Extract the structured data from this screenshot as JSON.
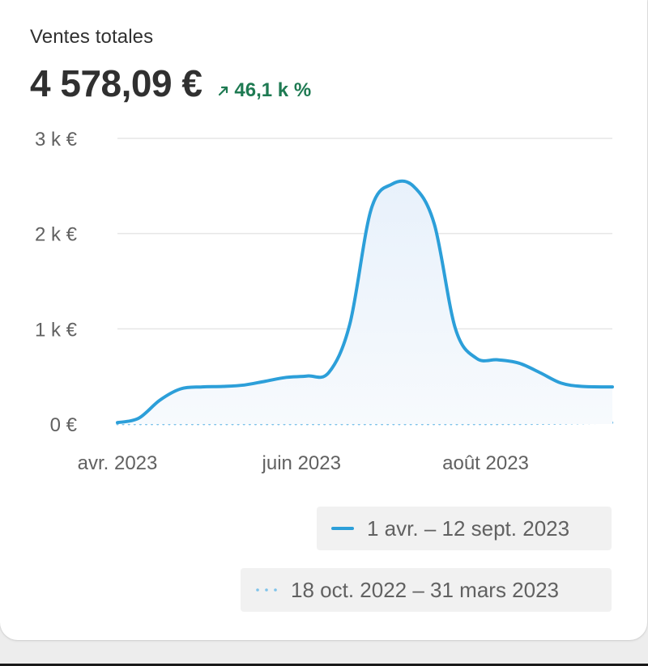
{
  "card": {
    "title": "Ventes totales",
    "value": "4 578,09 €",
    "change": "46,1 k %",
    "change_color": "#1e7a52",
    "change_icon": "arrow-up-right-icon"
  },
  "chart_data": {
    "type": "area",
    "ylim": [
      0,
      3000
    ],
    "y_ticks": [
      {
        "value": 0,
        "label": "0 €"
      },
      {
        "value": 1000,
        "label": "1 k €"
      },
      {
        "value": 2000,
        "label": "2 k €"
      },
      {
        "value": 3000,
        "label": "3 k €"
      }
    ],
    "x_range": [
      "2023-04-01",
      "2023-09-12"
    ],
    "x_ticks": [
      {
        "date": "2023-04-01",
        "label": "avr. 2023"
      },
      {
        "date": "2023-06-01",
        "label": "juin 2023"
      },
      {
        "date": "2023-08-01",
        "label": "août 2023"
      }
    ],
    "grid": true,
    "legend_position": "bottom-right",
    "series": [
      {
        "name": "1 avr. – 12 sept. 2023",
        "style": "solid",
        "color": "#2c9fd9",
        "fill": "#eef5fc",
        "points": [
          [
            "2023-04-01",
            15
          ],
          [
            "2023-04-08",
            60
          ],
          [
            "2023-04-15",
            250
          ],
          [
            "2023-04-22",
            370
          ],
          [
            "2023-04-29",
            390
          ],
          [
            "2023-05-06",
            395
          ],
          [
            "2023-05-13",
            410
          ],
          [
            "2023-05-20",
            450
          ],
          [
            "2023-05-27",
            490
          ],
          [
            "2023-06-03",
            505
          ],
          [
            "2023-06-10",
            540
          ],
          [
            "2023-06-17",
            1050
          ],
          [
            "2023-06-24",
            2250
          ],
          [
            "2023-07-01",
            2520
          ],
          [
            "2023-07-08",
            2500
          ],
          [
            "2023-07-15",
            2100
          ],
          [
            "2023-07-22",
            1000
          ],
          [
            "2023-07-29",
            690
          ],
          [
            "2023-08-05",
            675
          ],
          [
            "2023-08-12",
            640
          ],
          [
            "2023-08-19",
            540
          ],
          [
            "2023-08-26",
            430
          ],
          [
            "2023-09-02",
            395
          ],
          [
            "2023-09-12",
            390
          ]
        ]
      },
      {
        "name": "18 oct. 2022 – 31 mars 2023",
        "style": "dotted",
        "color": "#7fc3ea",
        "points": [
          [
            "2023-04-01",
            0
          ],
          [
            "2023-05-01",
            0
          ],
          [
            "2023-06-01",
            0
          ],
          [
            "2023-07-01",
            0
          ],
          [
            "2023-08-01",
            0
          ],
          [
            "2023-08-25",
            5
          ],
          [
            "2023-09-12",
            15
          ]
        ]
      }
    ]
  }
}
